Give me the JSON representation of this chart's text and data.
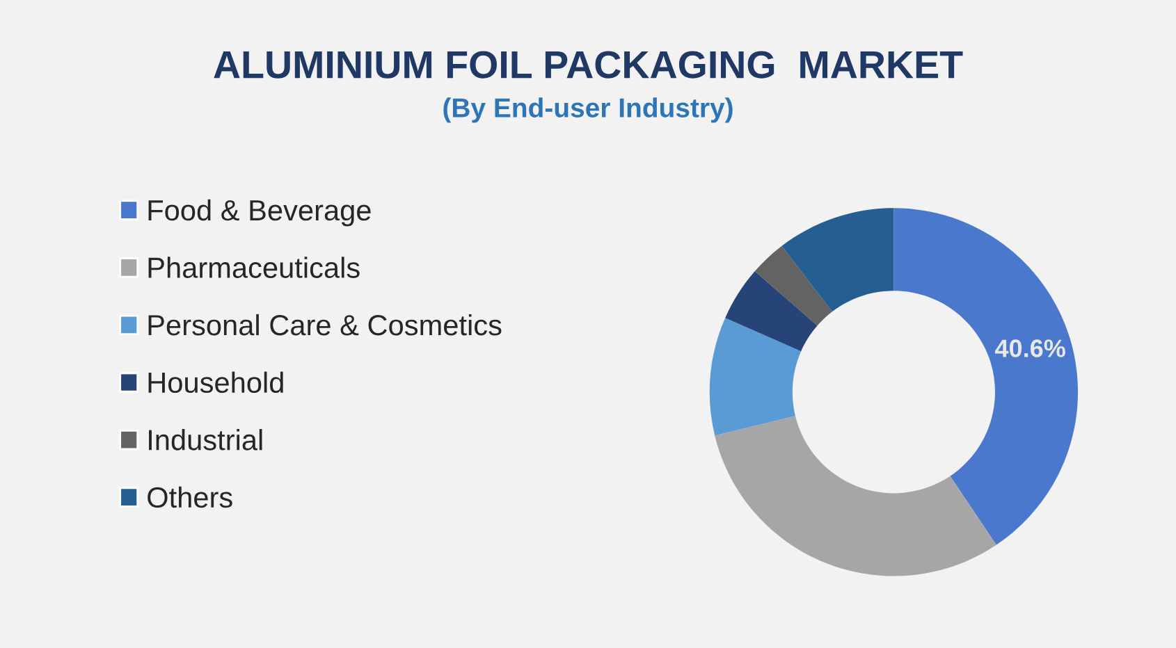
{
  "chart_data": {
    "type": "donut",
    "title": "ALUMINIUM FOIL PACKAGING  MARKET",
    "subtitle": "(By End-user Industry)",
    "categories": [
      "Food & Beverage",
      "Pharmaceuticals",
      "Personal Care & Cosmetics",
      "Household",
      "Industrial",
      "Others"
    ],
    "values": [
      40.6,
      30.6,
      10.4,
      4.8,
      3.2,
      10.4
    ],
    "colors": [
      "#4a78cc",
      "#a6a6a6",
      "#5b9bd5",
      "#264478",
      "#636363",
      "#255e91"
    ],
    "value_labels": [
      "40.6%",
      null,
      null,
      null,
      null,
      null
    ],
    "legend": "left"
  }
}
